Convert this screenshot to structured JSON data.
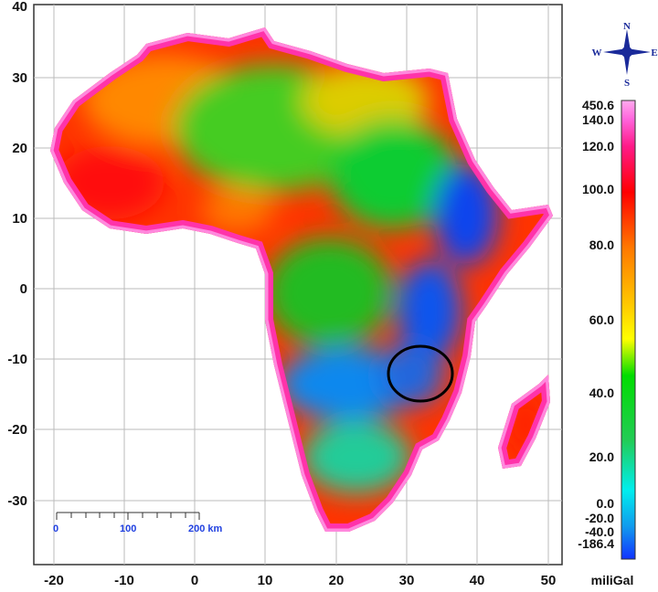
{
  "map": {
    "x_ticks": [
      "-20",
      "-10",
      "0",
      "10",
      "20",
      "30",
      "40",
      "50"
    ],
    "y_ticks": [
      "40",
      "30",
      "20",
      "10",
      "0",
      "-10",
      "-20",
      "-30"
    ],
    "scale_bar": {
      "labels": [
        "0",
        "100",
        "200 km"
      ]
    },
    "compass": {
      "n": "N",
      "s": "S",
      "e": "E",
      "w": "W"
    },
    "colorbar": {
      "unit": "miliGal",
      "labels": [
        "450.6",
        "140.0",
        "120.0",
        "100.0",
        "80.0",
        "60.0",
        "40.0",
        "20.0",
        "0.0",
        "-20.0",
        "-40.0",
        "-186.4"
      ]
    },
    "colors": {
      "highlight_circle": "#000000",
      "scale_text": "#1f3fe0"
    }
  }
}
